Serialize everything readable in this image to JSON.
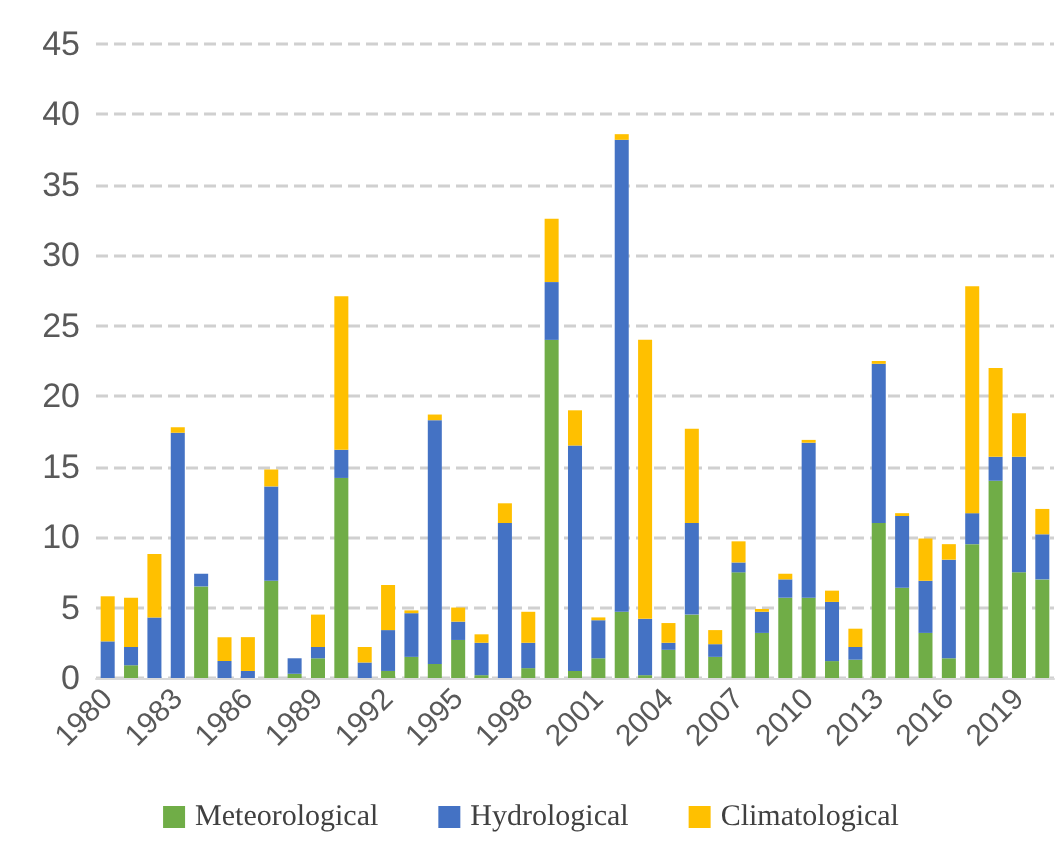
{
  "chart_data": {
    "type": "bar",
    "stacked": true,
    "categories": [
      "1980",
      null,
      null,
      "1983",
      null,
      null,
      "1986",
      null,
      null,
      "1989",
      null,
      null,
      "1992",
      null,
      null,
      "1995",
      null,
      null,
      "1998",
      null,
      null,
      "2001",
      null,
      null,
      "2004",
      null,
      null,
      "2007",
      null,
      null,
      "2010",
      null,
      null,
      "2013",
      null,
      null,
      "2016",
      null,
      null,
      "2019",
      null
    ],
    "series": [
      {
        "name": "Meteorological",
        "color": "#70ad47",
        "values": [
          0,
          0.9,
          0,
          0,
          6.5,
          0,
          0,
          6.9,
          0.3,
          1.4,
          14.2,
          0,
          0.5,
          1.5,
          1,
          2.7,
          0.2,
          0,
          0.7,
          24,
          0.5,
          1.4,
          4.7,
          0.2,
          2,
          4.5,
          1.5,
          7.5,
          3.2,
          5.7,
          5.7,
          1.2,
          1.3,
          11,
          6.4,
          3.2,
          1.4,
          9.5,
          14,
          7.5,
          7
        ]
      },
      {
        "name": "Hydrological",
        "color": "#4472c4",
        "values": [
          2.6,
          1.3,
          4.3,
          17.4,
          0.9,
          1.2,
          0.5,
          6.7,
          1.1,
          0.8,
          2,
          1.1,
          2.9,
          3.1,
          17.3,
          1.3,
          2.3,
          11,
          1.8,
          4.1,
          16,
          2.7,
          33.5,
          4,
          0.5,
          6.5,
          0.9,
          0.7,
          1.5,
          1.3,
          11,
          4.2,
          0.9,
          11.3,
          5.1,
          3.7,
          7,
          2.2,
          1.7,
          8.2,
          3.2
        ]
      },
      {
        "name": "Climatological",
        "color": "#ffc000",
        "values": [
          3.2,
          3.5,
          4.5,
          0.4,
          0,
          1.7,
          2.4,
          1.2,
          0,
          2.3,
          10.9,
          1.1,
          3.2,
          0.2,
          0.4,
          1,
          0.6,
          1.4,
          2.2,
          4.5,
          2.5,
          0.2,
          0.4,
          19.8,
          1.4,
          6.7,
          1,
          1.5,
          0.2,
          0.4,
          0.2,
          0.8,
          1.3,
          0.2,
          0.2,
          3,
          1.1,
          16.1,
          6.3,
          3.1,
          1.8
        ]
      }
    ],
    "ylim": [
      0,
      45
    ],
    "yticks": [
      0,
      5,
      10,
      15,
      20,
      25,
      30,
      35,
      40,
      45
    ],
    "grid": "y",
    "legend": "bottom"
  }
}
